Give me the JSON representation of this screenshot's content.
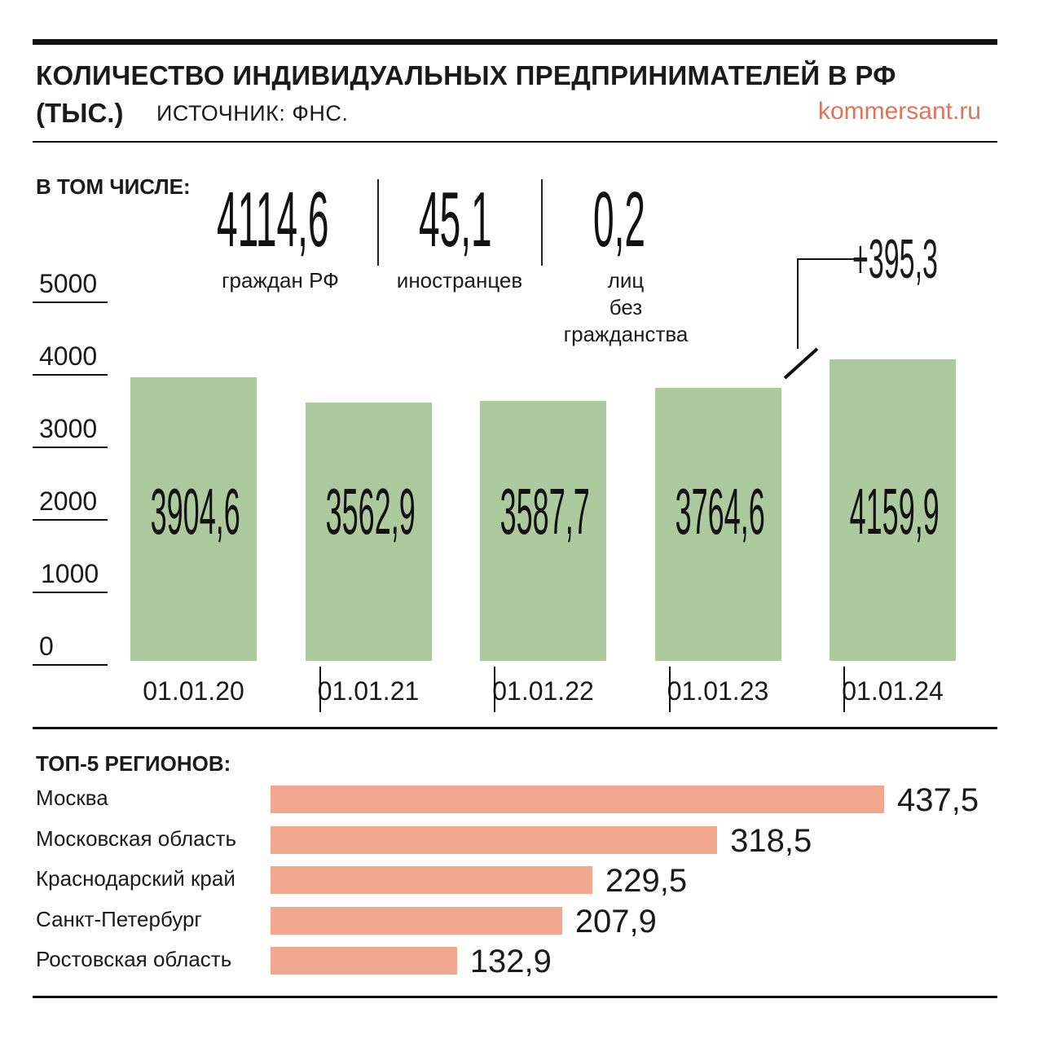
{
  "header": {
    "title_line1": "КОЛИЧЕСТВО ИНДИВИДУАЛЬНЫХ ПРЕДПРИНИМАТЕЛЕЙ В РФ",
    "title_line2": "(ТЫС.)",
    "source": "ИСТОЧНИК: ФНС.",
    "site": "kommersant.ru"
  },
  "breakdown": {
    "label": "В ТОМ ЧИСЛЕ:",
    "items": [
      {
        "value": "4114,6",
        "caption": "граждан РФ"
      },
      {
        "value": "45,1",
        "caption": "иностранцев"
      },
      {
        "value": "0,2",
        "caption_lines": [
          "лиц",
          "без",
          "гражданства"
        ]
      }
    ]
  },
  "chart_data": [
    {
      "type": "bar",
      "categories": [
        "01.01.20",
        "01.01.21",
        "01.01.22",
        "01.01.23",
        "01.01.24"
      ],
      "values": [
        3904.6,
        3562.9,
        3587.7,
        3764.6,
        4159.9
      ],
      "value_labels": [
        "3904,6",
        "3562,9",
        "3587,7",
        "3764,6",
        "4159,9"
      ],
      "yticks": [
        "0",
        "1000",
        "2000",
        "3000",
        "4000",
        "5000"
      ],
      "ylim": [
        0,
        5000
      ],
      "annotation": "+395,3",
      "colors": {
        "bar": "#adc99e"
      }
    },
    {
      "type": "bar",
      "orientation": "horizontal",
      "title": "ТОП-5 РЕГИОНОВ:",
      "categories": [
        "Москва",
        "Московская область",
        "Краснодарский край",
        "Санкт-Петербург",
        "Ростовская область"
      ],
      "values": [
        437.5,
        318.5,
        229.5,
        207.9,
        132.9
      ],
      "value_labels": [
        "437,5",
        "318,5",
        "229,5",
        "207,9",
        "132,9"
      ],
      "colors": {
        "bar": "#f2a88f"
      }
    }
  ]
}
